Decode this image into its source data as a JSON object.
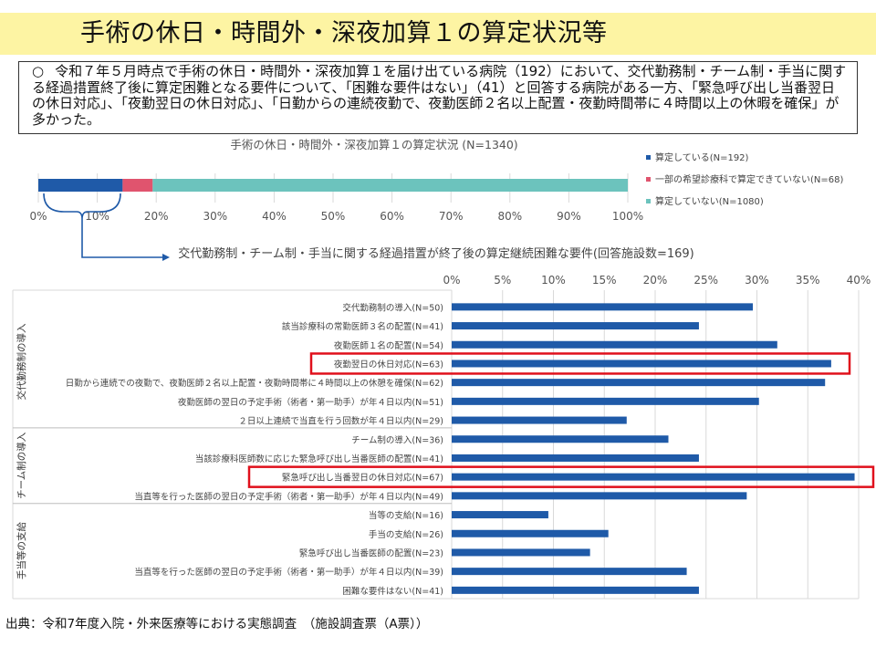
{
  "page": {
    "title": "手術の休日・時間外・深夜加算１の算定状況等",
    "summary_bullet": "○",
    "summary_text": "令和７年５月時点で手術の休日・時間外・深夜加算１を届け出ている病院（192）において、交代勤務制・チーム制・手当に関する経過措置終了後に算定困難となる要件について、「困難な要件はない」（41）と回答する病院がある一方、「緊急呼び出し当番翌日の休日対応」、「夜勤翌日の休日対応」、「日勤からの連続夜勤で、夜勤医師２名以上配置・夜勤時間帯に４時間以上の休暇を確保」が多かった。",
    "source": "出典：令和7年度入院・外来医療等における実態調査　（施設調査票（A票））"
  },
  "colors": {
    "blue": "#1f5aa8",
    "pink": "#e0546e",
    "teal": "#6cc3bd",
    "highlight": "#e0101c",
    "grid": "#d9d9d9"
  },
  "chart_data": [
    {
      "type": "bar",
      "orientation": "horizontal-stacked",
      "title": "手術の休日・時間外・深夜加算１の算定状況 (N=1340)",
      "categories": [
        ""
      ],
      "series": [
        {
          "name": "算定している(N=192)",
          "values": [
            14.3
          ],
          "color": "#1f5aa8"
        },
        {
          "name": "一部の希望診療科で算定できていない(N=68)",
          "values": [
            5.1
          ],
          "color": "#e0546e"
        },
        {
          "name": "算定していない(N=1080)",
          "values": [
            80.6
          ],
          "color": "#6cc3bd"
        }
      ],
      "xlim": [
        0,
        100
      ],
      "ticks": [
        "0%",
        "10%",
        "20%",
        "30%",
        "40%",
        "50%",
        "60%",
        "70%",
        "80%",
        "90%",
        "100%"
      ],
      "grid": true,
      "legend": "right"
    },
    {
      "type": "bar",
      "orientation": "horizontal",
      "title": "交代勤務制・チーム制・手当に関する経過措置が終了後の算定継続困難な要件(回答施設数=169)",
      "xlim": [
        0,
        40
      ],
      "ticks": [
        "0%",
        "5%",
        "10%",
        "15%",
        "20%",
        "25%",
        "30%",
        "35%",
        "40%"
      ],
      "grid": true,
      "groups": [
        {
          "label": "交代勤務制の導入",
          "start": 0,
          "end": 6
        },
        {
          "label": "チーム制の導入",
          "start": 7,
          "end": 10
        },
        {
          "label": "手当等の支給",
          "start": 11,
          "end": 15
        }
      ],
      "categories": [
        "交代勤務制の導入(N=50)",
        "該当診療科の常勤医師３名の配置(N=41)",
        "夜勤医師１名の配置(N=54)",
        "夜勤翌日の休日対応(N=63)",
        "日勤から連続での夜勤で、夜勤医師２名以上配置・夜勤時間帯に４時間以上の休憩を確保(N=62)",
        "夜勤医師の翌日の予定手術（術者・第一助手）が年４日以内(N=51)",
        "２日以上連続で当直を行う回数が年４日以内(N=29)",
        "チーム制の導入(N=36)",
        "当該診療科医師数に応じた緊急呼び出し当番医師の配置(N=41)",
        "緊急呼び出し当番翌日の休日対応(N=67)",
        "当直等を行った医師の翌日の予定手術（術者・第一助手）が年４日以内(N=49)",
        "当等の支給(N=16)",
        "手当の支給(N=26)",
        "緊急呼び出し当番医師の配置(N=23)",
        "当直等を行った医師の翌日の予定手術（術者・第一助手）が年４日以内(N=39)",
        "困難な要件はない(N=41)"
      ],
      "values": [
        29.6,
        24.3,
        32.0,
        37.3,
        36.7,
        30.2,
        17.2,
        21.3,
        24.3,
        39.6,
        29.0,
        9.5,
        15.4,
        13.6,
        23.1,
        24.3
      ],
      "highlighted": [
        3,
        9
      ]
    }
  ]
}
